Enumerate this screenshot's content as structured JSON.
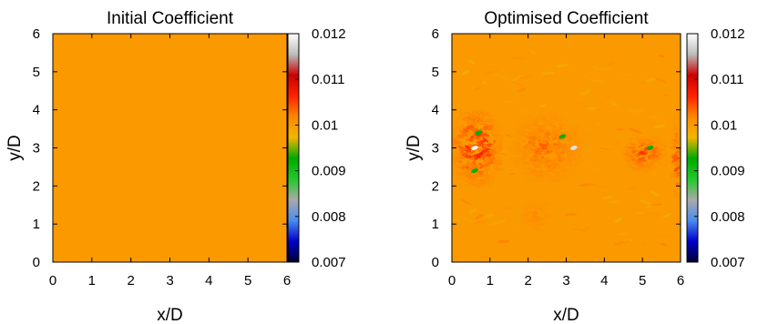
{
  "chart_data": [
    {
      "type": "heatmap",
      "title": "Initial Coefficient",
      "xlabel": "x/D",
      "ylabel": "y/D",
      "xlim": [
        0,
        6
      ],
      "ylim": [
        0,
        6
      ],
      "xticks": [
        "0",
        "1",
        "2",
        "3",
        "4",
        "5",
        "6"
      ],
      "yticks": [
        "0",
        "1",
        "2",
        "3",
        "4",
        "5",
        "6"
      ],
      "field": "uniform",
      "uniform_value": 0.01,
      "colorbar": {
        "range": [
          0.007,
          0.012
        ],
        "ticks": [
          "0.007",
          "0.008",
          "0.009",
          "0.01",
          "0.011",
          "0.012"
        ],
        "colormap": [
          "#000033",
          "#0000cc",
          "#4a8cf0",
          "#aaaaaa",
          "#22c82a",
          "#00aa00",
          "#f2b600",
          "#ff8800",
          "#ff2200",
          "#cc0000",
          "#bbbbbb",
          "#ffffff"
        ]
      }
    },
    {
      "type": "heatmap",
      "title": "Optimised Coefficient",
      "xlabel": "x/D",
      "ylabel": "y/D",
      "xlim": [
        0,
        6
      ],
      "ylim": [
        0,
        6
      ],
      "xticks": [
        "0",
        "1",
        "2",
        "3",
        "4",
        "5",
        "6"
      ],
      "yticks": [
        "0",
        "1",
        "2",
        "3",
        "4",
        "5",
        "6"
      ],
      "field": "perturbed",
      "background_value": 0.01,
      "perturbation_regions": [
        {
          "x": [
            0.0,
            1.3
          ],
          "y": [
            2.0,
            4.0
          ],
          "peak": 0.0108
        },
        {
          "x": [
            1.6,
            3.4
          ],
          "y": [
            2.1,
            3.9
          ],
          "peak": 0.0104
        },
        {
          "x": [
            4.5,
            5.6
          ],
          "y": [
            2.4,
            3.3
          ],
          "peak": 0.0106
        },
        {
          "x": [
            5.8,
            6.0
          ],
          "y": [
            1.7,
            3.6
          ],
          "peak": 0.0106
        },
        {
          "x": [
            1.8,
            2.6
          ],
          "y": [
            0.8,
            1.6
          ],
          "peak": 0.0102
        }
      ],
      "local_extrema": [
        {
          "x": 0.6,
          "y": 3.0,
          "value": 0.0119
        },
        {
          "x": 0.7,
          "y": 3.4,
          "value": 0.0092
        },
        {
          "x": 0.6,
          "y": 2.4,
          "value": 0.0093
        },
        {
          "x": 3.2,
          "y": 3.0,
          "value": 0.0118
        },
        {
          "x": 2.9,
          "y": 3.3,
          "value": 0.0093
        },
        {
          "x": 5.2,
          "y": 3.0,
          "value": 0.0093
        }
      ],
      "colorbar": {
        "range": [
          0.007,
          0.012
        ],
        "ticks": [
          "0.007",
          "0.008",
          "0.009",
          "0.01",
          "0.011",
          "0.012"
        ],
        "colormap": [
          "#000033",
          "#0000cc",
          "#4a8cf0",
          "#aaaaaa",
          "#22c82a",
          "#00aa00",
          "#f2b600",
          "#ff8800",
          "#ff2200",
          "#cc0000",
          "#bbbbbb",
          "#ffffff"
        ]
      }
    }
  ]
}
